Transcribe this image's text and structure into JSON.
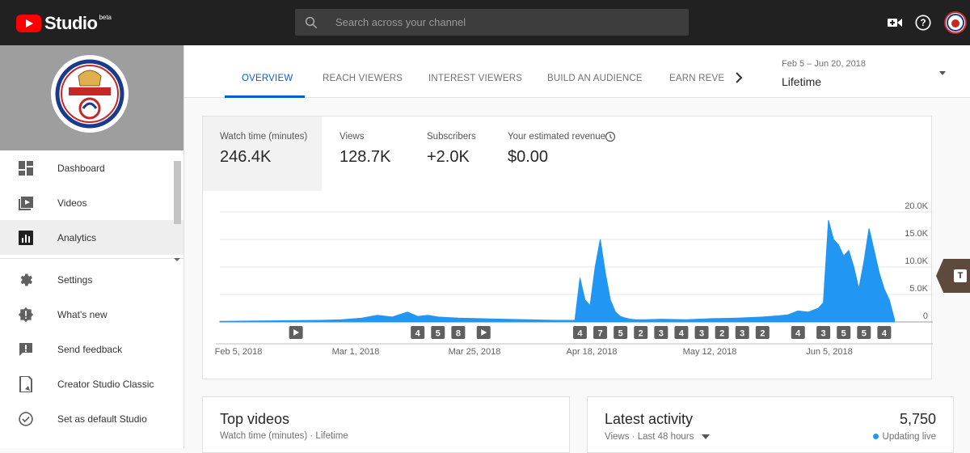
{
  "header": {
    "logo_text": "Studio",
    "logo_badge": "beta",
    "search_placeholder": "Search across your channel"
  },
  "sidebar": {
    "items": [
      {
        "label": "Dashboard",
        "icon": "dashboard-icon"
      },
      {
        "label": "Videos",
        "icon": "videos-icon"
      },
      {
        "label": "Analytics",
        "icon": "analytics-icon",
        "active": true
      },
      {
        "label": "Settings",
        "icon": "gear-icon"
      },
      {
        "label": "What's new",
        "icon": "whats-new-icon"
      },
      {
        "label": "Send feedback",
        "icon": "feedback-icon"
      },
      {
        "label": "Creator Studio Classic",
        "icon": "classic-studio-icon"
      },
      {
        "label": "Set as default Studio",
        "icon": "check-circle-icon"
      }
    ]
  },
  "tabs": [
    {
      "label": "OVERVIEW",
      "active": true
    },
    {
      "label": "REACH VIEWERS"
    },
    {
      "label": "INTEREST VIEWERS"
    },
    {
      "label": "BUILD AN AUDIENCE"
    },
    {
      "label": "EARN REVE"
    }
  ],
  "date_picker": {
    "range": "Feb 5 – Jun 20, 2018",
    "value": "Lifetime"
  },
  "metrics": [
    {
      "label": "Watch time (minutes)",
      "value": "246.4K",
      "active": true
    },
    {
      "label": "Views",
      "value": "128.7K"
    },
    {
      "label": "Subscribers",
      "value": "+2.0K"
    },
    {
      "label": "Your estimated revenue",
      "value": "$0.00"
    }
  ],
  "side_tab_label": "T",
  "chart_data": {
    "type": "area",
    "color": "#2196f3",
    "y_ticks": [
      "20.0K",
      "15.0K",
      "10.0K",
      "5.0K",
      "0"
    ],
    "ylim": [
      0,
      20000
    ],
    "x_ticks": [
      "Feb 5, 2018",
      "Mar 1, 2018",
      "Mar 25, 2018",
      "Apr 18, 2018",
      "May 12, 2018",
      "Jun 5, 2018"
    ],
    "start_date": "2018-02-05",
    "end_date": "2018-06-20",
    "series": [
      {
        "x": [
          "2018-02-05",
          "2018-02-15",
          "2018-02-25",
          "2018-03-01",
          "2018-03-05",
          "2018-03-08",
          "2018-03-11",
          "2018-03-14",
          "2018-03-16",
          "2018-03-18",
          "2018-03-20",
          "2018-03-24",
          "2018-03-28",
          "2018-04-02",
          "2018-04-07",
          "2018-04-12",
          "2018-04-16",
          "2018-04-17",
          "2018-04-18",
          "2018-04-19",
          "2018-04-20",
          "2018-04-21",
          "2018-04-22",
          "2018-04-23",
          "2018-04-24",
          "2018-04-25",
          "2018-04-26",
          "2018-04-27",
          "2018-04-28",
          "2018-04-30",
          "2018-05-03",
          "2018-05-08",
          "2018-05-13",
          "2018-05-18",
          "2018-05-23",
          "2018-05-26",
          "2018-05-28",
          "2018-05-30",
          "2018-06-01",
          "2018-06-03",
          "2018-06-04",
          "2018-06-05",
          "2018-06-06",
          "2018-06-07",
          "2018-06-08",
          "2018-06-09",
          "2018-06-10",
          "2018-06-11",
          "2018-06-12",
          "2018-06-13",
          "2018-06-14",
          "2018-06-15",
          "2018-06-16",
          "2018-06-17",
          "2018-06-18"
        ],
        "y": [
          100,
          200,
          300,
          400,
          700,
          1200,
          900,
          1800,
          1000,
          1200,
          900,
          700,
          600,
          500,
          400,
          300,
          300,
          8000,
          4000,
          3000,
          10000,
          15000,
          9000,
          4000,
          1800,
          1000,
          700,
          500,
          400,
          400,
          500,
          400,
          600,
          700,
          900,
          1100,
          1300,
          2000,
          1800,
          2500,
          3500,
          18500,
          15000,
          14000,
          12000,
          13000,
          10000,
          6000,
          11000,
          17000,
          13000,
          9000,
          6000,
          4000,
          500
        ]
      }
    ],
    "markers": [
      {
        "date": "2018-02-20",
        "label": "▶"
      },
      {
        "date": "2018-03-16",
        "label": "4"
      },
      {
        "date": "2018-03-20",
        "label": "5"
      },
      {
        "date": "2018-03-24",
        "label": "8"
      },
      {
        "date": "2018-03-29",
        "label": "▶"
      },
      {
        "date": "2018-04-17",
        "label": "4"
      },
      {
        "date": "2018-04-21",
        "label": "7"
      },
      {
        "date": "2018-04-25",
        "label": "5"
      },
      {
        "date": "2018-04-29",
        "label": "2"
      },
      {
        "date": "2018-05-03",
        "label": "3"
      },
      {
        "date": "2018-05-07",
        "label": "4"
      },
      {
        "date": "2018-05-11",
        "label": "3"
      },
      {
        "date": "2018-05-15",
        "label": "2"
      },
      {
        "date": "2018-05-19",
        "label": "3"
      },
      {
        "date": "2018-05-23",
        "label": "2"
      },
      {
        "date": "2018-05-30",
        "label": "4"
      },
      {
        "date": "2018-06-04",
        "label": "3"
      },
      {
        "date": "2018-06-08",
        "label": "5"
      },
      {
        "date": "2018-06-12",
        "label": "5"
      },
      {
        "date": "2018-06-16",
        "label": "4"
      }
    ]
  },
  "top_videos": {
    "title": "Top videos",
    "subtitle": "Watch time (minutes) · Lifetime"
  },
  "latest_activity": {
    "title": "Latest activity",
    "value": "5,750",
    "subtitle": "Views · Last 48 hours",
    "status": "Updating live"
  }
}
